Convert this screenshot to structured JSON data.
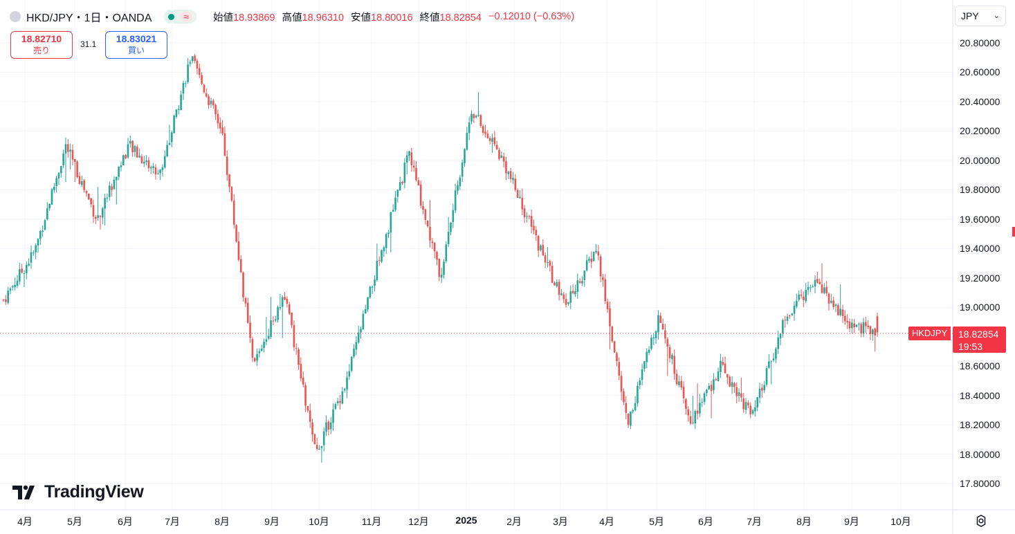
{
  "header": {
    "symbol_title": "HKD/JPY・1日・OANDA",
    "status_icon": "market-open-dot",
    "approx_symbol": "≈",
    "open_label": "始値",
    "open_value": "18.93869",
    "high_label": "高値",
    "high_value": "18.96310",
    "low_label": "安値",
    "low_value": "18.80016",
    "close_label": "終値",
    "close_value": "18.82854",
    "change": "−0.12010 (−0.63%)"
  },
  "trade": {
    "sell_price": "18.82710",
    "sell_label": "売り",
    "spread": "31.1",
    "buy_price": "18.83021",
    "buy_label": "買い"
  },
  "currency_selector": {
    "value": "JPY"
  },
  "price_axis": {
    "labels": [
      "20.80000",
      "20.60000",
      "20.40000",
      "20.20000",
      "20.00000",
      "19.80000",
      "19.60000",
      "19.40000",
      "19.20000",
      "19.00000",
      "18.60000",
      "18.40000",
      "18.20000",
      "18.00000",
      "17.80000"
    ],
    "current_price": "18.82854",
    "countdown": "19:53",
    "symbol_tag": "HKDJPY"
  },
  "time_axis": {
    "labels": [
      "4月",
      "5月",
      "6月",
      "7月",
      "8月",
      "9月",
      "10月",
      "11月",
      "12月",
      "2025",
      "2月",
      "3月",
      "4月",
      "5月",
      "6月",
      "7月",
      "8月",
      "9月",
      "10月"
    ]
  },
  "logo": {
    "text": "TradingView"
  },
  "colors": {
    "up": "#26a69a",
    "down": "#ef5350",
    "current_price_line": "#f23645"
  },
  "chart_data": {
    "type": "candlestick",
    "symbol": "HKDJPY",
    "interval": "1D",
    "exchange": "OANDA",
    "y_range": [
      17.7,
      20.85
    ],
    "x_ticks": [
      "4月",
      "5月",
      "6月",
      "7月",
      "8月",
      "9月",
      "10月",
      "11月",
      "12月",
      "2025",
      "2月",
      "3月",
      "4月",
      "5月",
      "6月",
      "7月",
      "8月",
      "9月",
      "10月"
    ],
    "approx_close_path": [
      {
        "period": "2024-04 start",
        "close": 19.05
      },
      {
        "period": "2024-04",
        "close": 19.38
      },
      {
        "period": "2024-05 start",
        "close": 20.1
      },
      {
        "period": "2024-05",
        "close": 19.6
      },
      {
        "period": "2024-06",
        "close": 20.1
      },
      {
        "period": "2024-06 end",
        "close": 19.9
      },
      {
        "period": "2024-07 peak",
        "close": 20.7
      },
      {
        "period": "2024-07",
        "close": 20.2
      },
      {
        "period": "2024-08 low",
        "close": 18.6
      },
      {
        "period": "2024-08",
        "close": 19.1
      },
      {
        "period": "2024-09 low",
        "close": 18.0
      },
      {
        "period": "2024-10",
        "close": 18.5
      },
      {
        "period": "2024-10 end",
        "close": 19.3
      },
      {
        "period": "2024-11 peak",
        "close": 20.05
      },
      {
        "period": "2024-12 low",
        "close": 19.2
      },
      {
        "period": "2025-01 peak",
        "close": 20.35
      },
      {
        "period": "2025-02",
        "close": 20.0
      },
      {
        "period": "2025-03",
        "close": 19.5
      },
      {
        "period": "2025-03 end",
        "close": 19.0
      },
      {
        "period": "2025-04 start",
        "close": 19.4
      },
      {
        "period": "2025-04 low",
        "close": 18.2
      },
      {
        "period": "2025-05",
        "close": 18.95
      },
      {
        "period": "2025-06 low",
        "close": 18.2
      },
      {
        "period": "2025-07",
        "close": 18.6
      },
      {
        "period": "2025-07 low",
        "close": 18.25
      },
      {
        "period": "2025-08",
        "close": 18.9
      },
      {
        "period": "2025-08 high",
        "close": 19.2
      },
      {
        "period": "2025-09",
        "close": 18.9
      },
      {
        "period": "2025-09 last",
        "close": 18.83
      }
    ],
    "last": {
      "open": 18.93869,
      "high": 18.9631,
      "low": 18.80016,
      "close": 18.82854
    }
  }
}
